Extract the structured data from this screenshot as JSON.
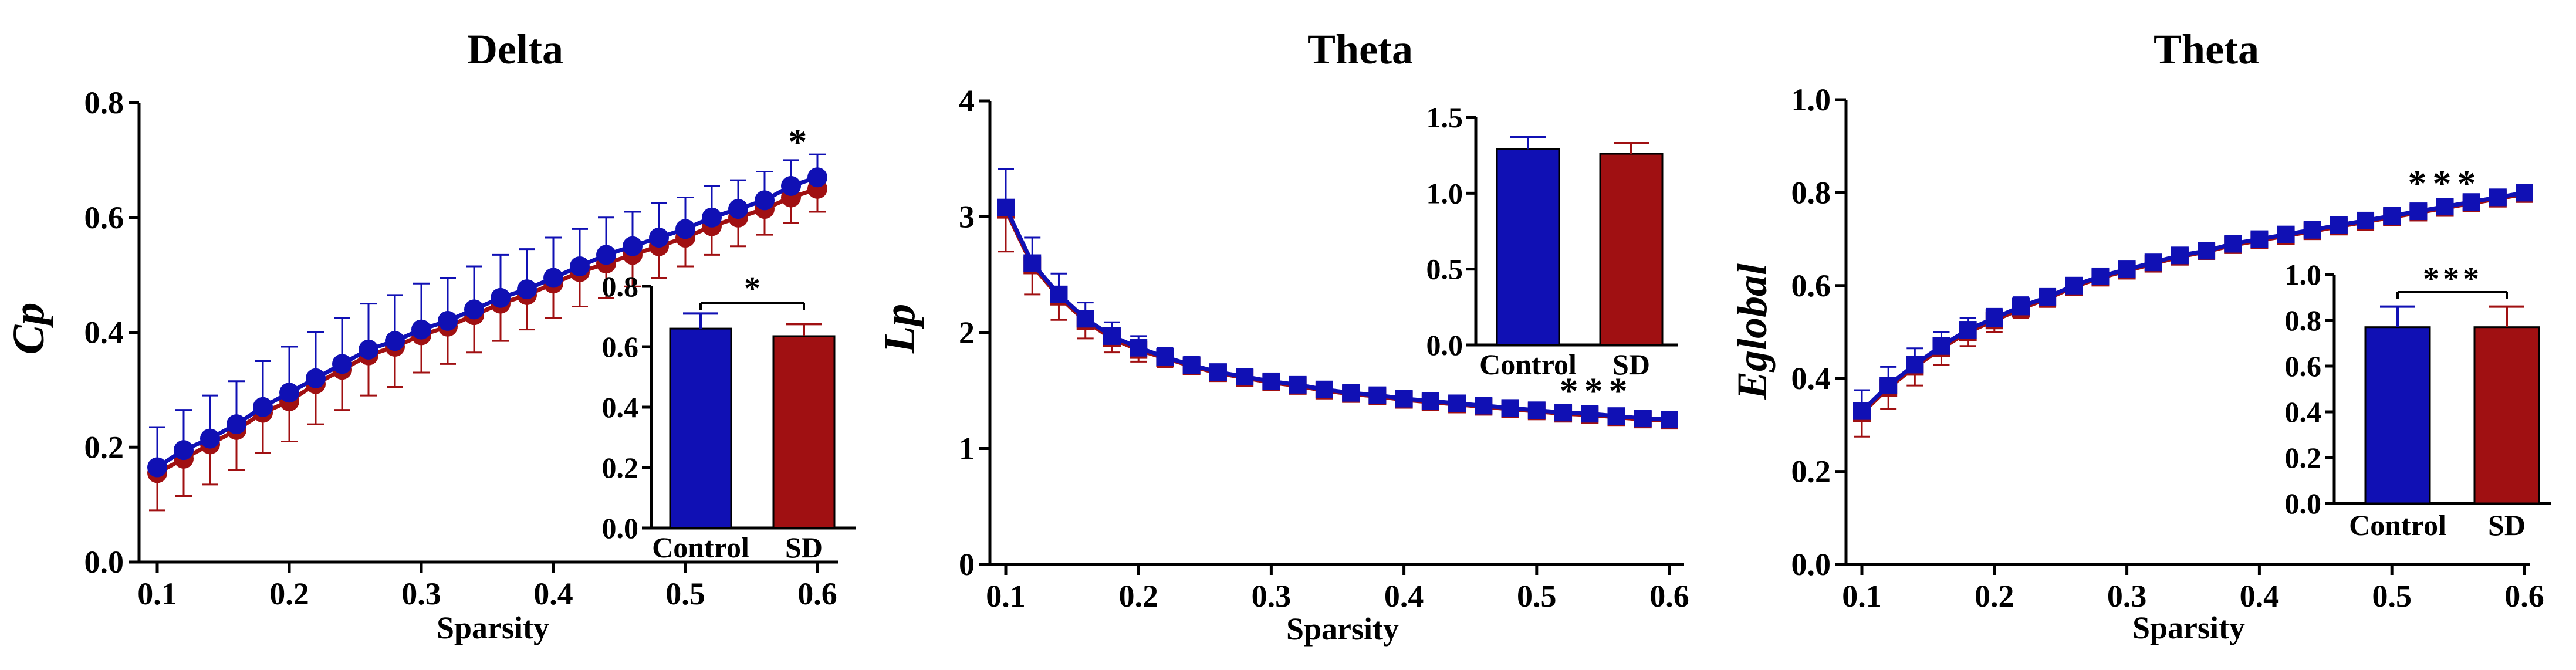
{
  "colors": {
    "control": "#1010b4",
    "sd": "#a01012",
    "axis": "#000000"
  },
  "chart_data": [
    {
      "type": "line",
      "title": "Delta",
      "xlabel": "Sparsity",
      "ylabel": "Cp",
      "xlim": [
        0.1,
        0.6
      ],
      "ylim": [
        0.0,
        0.8
      ],
      "xticks": [
        0.1,
        0.2,
        0.3,
        0.4,
        0.5,
        0.6
      ],
      "xtick_labels": [
        "0.1",
        "0.2",
        "0.3",
        "0.4",
        "0.5",
        "0.6"
      ],
      "yticks": [
        0.0,
        0.2,
        0.4,
        0.6,
        0.8
      ],
      "ytick_labels": [
        "0.0",
        "0.2",
        "0.4",
        "0.6",
        "0.8"
      ],
      "marker": "circle",
      "x": [
        0.1,
        0.12,
        0.14,
        0.16,
        0.18,
        0.2,
        0.22,
        0.24,
        0.26,
        0.28,
        0.3,
        0.32,
        0.34,
        0.36,
        0.38,
        0.4,
        0.42,
        0.44,
        0.46,
        0.48,
        0.5,
        0.52,
        0.54,
        0.56,
        0.58,
        0.6
      ],
      "series": [
        {
          "name": "Control",
          "values": [
            0.165,
            0.195,
            0.215,
            0.24,
            0.27,
            0.295,
            0.32,
            0.345,
            0.37,
            0.385,
            0.405,
            0.42,
            0.44,
            0.46,
            0.475,
            0.495,
            0.515,
            0.535,
            0.55,
            0.565,
            0.58,
            0.6,
            0.615,
            0.63,
            0.655,
            0.67
          ],
          "errors": [
            0.07,
            0.07,
            0.075,
            0.075,
            0.08,
            0.08,
            0.08,
            0.08,
            0.08,
            0.08,
            0.08,
            0.075,
            0.075,
            0.075,
            0.07,
            0.07,
            0.065,
            0.065,
            0.06,
            0.06,
            0.055,
            0.055,
            0.05,
            0.05,
            0.045,
            0.04
          ]
        },
        {
          "name": "SD",
          "values": [
            0.155,
            0.18,
            0.205,
            0.23,
            0.26,
            0.28,
            0.31,
            0.335,
            0.36,
            0.375,
            0.395,
            0.41,
            0.43,
            0.45,
            0.465,
            0.485,
            0.505,
            0.52,
            0.535,
            0.55,
            0.565,
            0.585,
            0.6,
            0.615,
            0.635,
            0.65
          ],
          "errors": [
            0.065,
            0.065,
            0.07,
            0.07,
            0.07,
            0.07,
            0.07,
            0.07,
            0.07,
            0.07,
            0.065,
            0.065,
            0.065,
            0.065,
            0.06,
            0.06,
            0.06,
            0.06,
            0.055,
            0.055,
            0.05,
            0.05,
            0.05,
            0.045,
            0.045,
            0.04
          ]
        }
      ],
      "annotation": {
        "text": "*",
        "x": 0.585
      },
      "inset": {
        "type": "bar",
        "categories": [
          "Control",
          "SD"
        ],
        "values": [
          0.66,
          0.635
        ],
        "errors": [
          0.05,
          0.04
        ],
        "ylim": [
          0.0,
          0.8
        ],
        "yticks": [
          0.0,
          0.2,
          0.4,
          0.6,
          0.8
        ],
        "ytick_labels": [
          "0.0",
          "0.2",
          "0.4",
          "0.6",
          "0.8"
        ],
        "significance": "*"
      }
    },
    {
      "type": "line",
      "title": "Theta",
      "xlabel": "Sparsity",
      "ylabel": "Lp",
      "xlim": [
        0.1,
        0.6
      ],
      "ylim": [
        0,
        4
      ],
      "xticks": [
        0.1,
        0.2,
        0.3,
        0.4,
        0.5,
        0.6
      ],
      "xtick_labels": [
        "0.1",
        "0.2",
        "0.3",
        "0.4",
        "0.5",
        "0.6"
      ],
      "yticks": [
        0,
        1,
        2,
        3,
        4
      ],
      "ytick_labels": [
        "0",
        "1",
        "2",
        "3",
        "4"
      ],
      "marker": "square",
      "x": [
        0.1,
        0.12,
        0.14,
        0.16,
        0.18,
        0.2,
        0.22,
        0.24,
        0.26,
        0.28,
        0.3,
        0.32,
        0.34,
        0.36,
        0.38,
        0.4,
        0.42,
        0.44,
        0.46,
        0.48,
        0.5,
        0.52,
        0.54,
        0.56,
        0.58,
        0.6
      ],
      "series": [
        {
          "name": "Control",
          "values": [
            3.08,
            2.6,
            2.33,
            2.12,
            1.97,
            1.87,
            1.79,
            1.72,
            1.66,
            1.62,
            1.58,
            1.55,
            1.51,
            1.48,
            1.46,
            1.43,
            1.41,
            1.39,
            1.37,
            1.35,
            1.33,
            1.31,
            1.3,
            1.28,
            1.26,
            1.25
          ],
          "errors": [
            0.33,
            0.22,
            0.18,
            0.14,
            0.12,
            0.1,
            0.08,
            0.07,
            0.06,
            0.05,
            0.05,
            0.05,
            0.04,
            0.04,
            0.04,
            0.04,
            0.04,
            0.04,
            0.04,
            0.04,
            0.04,
            0.04,
            0.04,
            0.04,
            0.04,
            0.04
          ]
        },
        {
          "name": "SD",
          "values": [
            3.06,
            2.58,
            2.31,
            2.1,
            1.95,
            1.85,
            1.78,
            1.71,
            1.65,
            1.61,
            1.57,
            1.54,
            1.5,
            1.47,
            1.45,
            1.42,
            1.4,
            1.38,
            1.36,
            1.34,
            1.32,
            1.3,
            1.29,
            1.27,
            1.25,
            1.24
          ],
          "errors": [
            0.36,
            0.25,
            0.2,
            0.15,
            0.12,
            0.1,
            0.08,
            0.07,
            0.06,
            0.05,
            0.05,
            0.05,
            0.04,
            0.04,
            0.04,
            0.04,
            0.04,
            0.04,
            0.04,
            0.04,
            0.04,
            0.04,
            0.04,
            0.04,
            0.04,
            0.04
          ]
        }
      ],
      "annotation": {
        "text": "***",
        "x": 0.545
      },
      "inset": {
        "type": "bar",
        "categories": [
          "Control",
          "SD"
        ],
        "values": [
          1.29,
          1.26
        ],
        "errors": [
          0.08,
          0.07
        ],
        "ylim": [
          0.0,
          1.5
        ],
        "yticks": [
          0.0,
          0.5,
          1.0,
          1.5
        ],
        "ytick_labels": [
          "0.0",
          "0.5",
          "1.0",
          "1.5"
        ],
        "significance": ""
      }
    },
    {
      "type": "line",
      "title": "Theta",
      "xlabel": "Sparsity",
      "ylabel": "Eglobal",
      "xlim": [
        0.1,
        0.6
      ],
      "ylim": [
        0.0,
        1.0
      ],
      "xticks": [
        0.1,
        0.2,
        0.3,
        0.4,
        0.5,
        0.6
      ],
      "xtick_labels": [
        "0.1",
        "0.2",
        "0.3",
        "0.4",
        "0.5",
        "0.6"
      ],
      "yticks": [
        0.0,
        0.2,
        0.4,
        0.6,
        0.8,
        1.0
      ],
      "ytick_labels": [
        "0.0",
        "0.2",
        "0.4",
        "0.6",
        "0.8",
        "1.0"
      ],
      "marker": "square",
      "x": [
        0.1,
        0.12,
        0.14,
        0.16,
        0.18,
        0.2,
        0.22,
        0.24,
        0.26,
        0.28,
        0.3,
        0.32,
        0.34,
        0.36,
        0.38,
        0.4,
        0.42,
        0.44,
        0.46,
        0.48,
        0.5,
        0.52,
        0.54,
        0.56,
        0.58,
        0.6
      ],
      "series": [
        {
          "name": "Control",
          "values": [
            0.33,
            0.385,
            0.43,
            0.47,
            0.505,
            0.53,
            0.555,
            0.575,
            0.6,
            0.62,
            0.635,
            0.65,
            0.665,
            0.675,
            0.69,
            0.7,
            0.71,
            0.72,
            0.73,
            0.74,
            0.75,
            0.76,
            0.77,
            0.78,
            0.79,
            0.8
          ],
          "errors": [
            0.045,
            0.04,
            0.035,
            0.03,
            0.025,
            0.02,
            0.02,
            0.018,
            0.015,
            0.015,
            0.012,
            0.012,
            0.012,
            0.01,
            0.01,
            0.01,
            0.01,
            0.01,
            0.01,
            0.01,
            0.01,
            0.01,
            0.01,
            0.01,
            0.01,
            0.01
          ]
        },
        {
          "name": "SD",
          "values": [
            0.325,
            0.38,
            0.425,
            0.465,
            0.5,
            0.525,
            0.55,
            0.572,
            0.597,
            0.617,
            0.632,
            0.647,
            0.662,
            0.673,
            0.687,
            0.697,
            0.707,
            0.717,
            0.727,
            0.737,
            0.747,
            0.757,
            0.767,
            0.777,
            0.787,
            0.797
          ],
          "errors": [
            0.05,
            0.045,
            0.04,
            0.035,
            0.03,
            0.025,
            0.02,
            0.018,
            0.015,
            0.015,
            0.012,
            0.012,
            0.012,
            0.01,
            0.01,
            0.01,
            0.01,
            0.01,
            0.01,
            0.01,
            0.01,
            0.01,
            0.01,
            0.01,
            0.01,
            0.01
          ]
        }
      ],
      "annotation": {
        "text": "***",
        "x": 0.54
      },
      "inset": {
        "type": "bar",
        "categories": [
          "Control",
          "SD"
        ],
        "values": [
          0.77,
          0.77
        ],
        "errors": [
          0.09,
          0.09
        ],
        "ylim": [
          0.0,
          1.0
        ],
        "yticks": [
          0.0,
          0.2,
          0.4,
          0.6,
          0.8,
          1.0
        ],
        "ytick_labels": [
          "0.0",
          "0.2",
          "0.4",
          "0.6",
          "0.8",
          "1.0"
        ],
        "significance": "***"
      }
    }
  ]
}
